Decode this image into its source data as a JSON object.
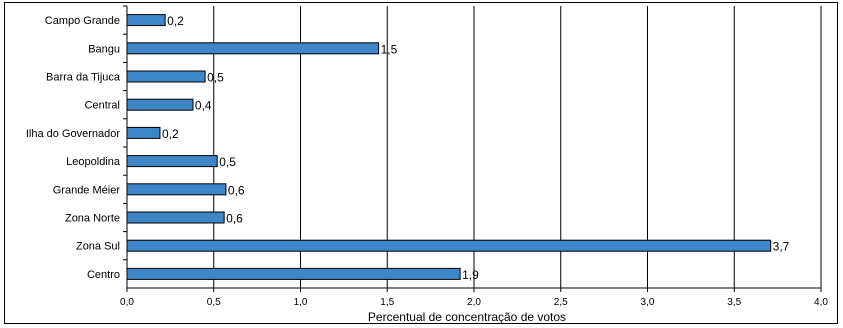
{
  "chart_data": {
    "type": "bar",
    "orientation": "horizontal",
    "categories": [
      "Campo Grande",
      "Bangu",
      "Barra da Tijuca",
      "Central",
      "Ilha do Governador",
      "Leopoldina",
      "Grande Méier",
      "Zona Norte",
      "Zona Sul",
      "Centro"
    ],
    "values": [
      0.22,
      1.45,
      0.45,
      0.38,
      0.19,
      0.52,
      0.57,
      0.56,
      3.71,
      1.92
    ],
    "value_labels": [
      "0,2",
      "1,5",
      "0,5",
      "0,4",
      "0,2",
      "0,5",
      "0,6",
      "0,6",
      "3,7",
      "1,9"
    ],
    "xlabel": "Percentual de concentração de votos",
    "xlim": [
      0,
      4.0
    ],
    "xticks": [
      "0,0",
      "0,5",
      "1,0",
      "1,5",
      "2,0",
      "2,5",
      "3,0",
      "3,5",
      "4,0"
    ],
    "grid": true,
    "bar_color": "#3f86c8",
    "bar_edge_color": "#000000"
  }
}
